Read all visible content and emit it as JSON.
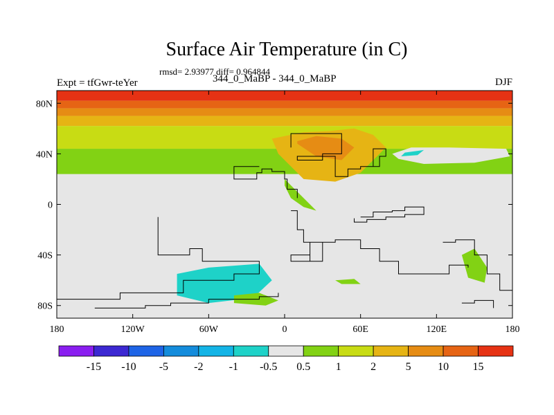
{
  "chart_data": {
    "type": "contour-map",
    "title": "Surface Air Temperature (in C)",
    "stats_text": "rmsd= 2.93977 diff= 0.964844",
    "subtitle": "344_0_MaBP - 344_0_MaBP",
    "left_label": "Expt = tfGwr-teYer",
    "right_label": "DJF",
    "x_axis": {
      "range": [
        -180,
        180
      ],
      "ticks": [
        -180,
        -120,
        -60,
        0,
        60,
        120,
        180
      ],
      "tick_labels": [
        "180",
        "120W",
        "60W",
        "0",
        "60E",
        "120E",
        "180"
      ]
    },
    "y_axis": {
      "range": [
        -90,
        90
      ],
      "ticks": [
        80,
        40,
        0,
        -40,
        -80
      ],
      "tick_labels": [
        "80N",
        "40N",
        "0",
        "40S",
        "80S"
      ]
    },
    "colorbar": {
      "levels": [
        "-15",
        "-10",
        "-5",
        "-2",
        "-1",
        "-0.5",
        "0.5",
        "1",
        "2",
        "5",
        "10",
        "15"
      ],
      "colors": [
        "#8a1ef0",
        "#3c28d2",
        "#1e64e6",
        "#148cdc",
        "#14b4e6",
        "#1ed2c8",
        "#e6e6e6",
        "#82d214",
        "#c8dc14",
        "#e6b414",
        "#e68c14",
        "#e66414",
        "#e63214"
      ]
    },
    "zonal_bands": [
      {
        "lat_min": 82,
        "lat_max": 90,
        "value": 17,
        "color": "#e63214"
      },
      {
        "lat_min": 76,
        "lat_max": 82,
        "value": 12,
        "color": "#e66414"
      },
      {
        "lat_min": 70,
        "lat_max": 76,
        "value": 7,
        "color": "#e68c14"
      },
      {
        "lat_min": 62,
        "lat_max": 70,
        "value": 3,
        "color": "#e6b414"
      },
      {
        "lat_min": 44,
        "lat_max": 62,
        "value": 1.5,
        "color": "#c8dc14"
      },
      {
        "lat_min": 24,
        "lat_max": 44,
        "value": 0.8,
        "color": "#82d214"
      }
    ],
    "regions": [
      {
        "name": "asia-warm",
        "color": "#e6b414",
        "lon": [
          -10,
          -5,
          15,
          40,
          60,
          70,
          80,
          70,
          55,
          35,
          15,
          0
        ],
        "lat": [
          52,
          40,
          20,
          18,
          25,
          35,
          45,
          55,
          60,
          58,
          57,
          54
        ]
      },
      {
        "name": "asia-core",
        "color": "#e68c14",
        "lon": [
          10,
          25,
          45,
          55,
          45,
          25,
          10
        ],
        "lat": [
          48,
          38,
          35,
          45,
          52,
          54,
          50
        ]
      },
      {
        "name": "arctic-cold-pool",
        "color": "#e6e6e6",
        "lon": [
          85,
          100,
          130,
          175,
          178,
          150,
          110,
          90
        ],
        "lat": [
          40,
          45,
          45,
          44,
          38,
          33,
          32,
          36
        ]
      },
      {
        "name": "siberia-teal",
        "color": "#1ed2c8",
        "lon": [
          95,
          110,
          105,
          92
        ],
        "lat": [
          41,
          43,
          39,
          38
        ]
      },
      {
        "name": "africa-green",
        "color": "#82d214",
        "lon": [
          0,
          10,
          20,
          25,
          15,
          5,
          0
        ],
        "lat": [
          20,
          10,
          0,
          -5,
          -2,
          5,
          15
        ]
      },
      {
        "name": "southern-blue",
        "color": "#148cdc",
        "lon": [
          -75,
          -58,
          -40,
          -36,
          -50,
          -70,
          -78
        ],
        "lat": [
          -62,
          -57,
          -58,
          -66,
          -70,
          -70,
          -66
        ]
      },
      {
        "name": "southern-cyan",
        "color": "#1ed2c8",
        "lon": [
          -85,
          -60,
          -20,
          -10,
          -25,
          -60,
          -85
        ],
        "lat": [
          -55,
          -50,
          -47,
          -60,
          -74,
          -78,
          -72
        ]
      },
      {
        "name": "southern-green-1",
        "color": "#82d214",
        "lon": [
          -40,
          -20,
          -5,
          -15,
          -40
        ],
        "lat": [
          -72,
          -70,
          -76,
          -80,
          -78
        ]
      },
      {
        "name": "pacific-green",
        "color": "#82d214",
        "lon": [
          140,
          150,
          160,
          158,
          145
        ],
        "lat": [
          -40,
          -35,
          -50,
          -62,
          -58
        ]
      },
      {
        "name": "indian-green",
        "color": "#82d214",
        "lon": [
          40,
          55,
          60,
          45
        ],
        "lat": [
          -60,
          -59,
          -63,
          -63
        ]
      }
    ],
    "coastlines": [
      {
        "name": "north-america",
        "lon": [
          -20,
          -35,
          -40,
          -30,
          -22,
          -18,
          -10,
          0,
          2,
          10
        ],
        "lat": [
          30,
          30,
          20,
          20,
          25,
          28,
          26,
          20,
          12,
          5
        ]
      },
      {
        "name": "eurasia",
        "lon": [
          5,
          5,
          30,
          45,
          45,
          30,
          10,
          40,
          50,
          60,
          75,
          80,
          70
        ],
        "lat": [
          45,
          56,
          56,
          50,
          40,
          35,
          38,
          22,
          28,
          30,
          38,
          44,
          30
        ]
      },
      {
        "name": "equatorial-island",
        "lon": [
          60,
          70,
          85,
          95,
          110,
          110,
          95,
          80,
          65,
          55
        ],
        "lat": [
          -10,
          -6,
          -5,
          -2,
          -2,
          -8,
          -10,
          -12,
          -14,
          -11
        ]
      },
      {
        "name": "africa-south",
        "lon": [
          5,
          10,
          15,
          28,
          30,
          20,
          5,
          20,
          40,
          60,
          75,
          90,
          110,
          130,
          145
        ],
        "lat": [
          -5,
          -20,
          -30,
          -30,
          -45,
          -40,
          -45,
          -30,
          -28,
          -35,
          -45,
          -55,
          -55,
          -48,
          -50
        ]
      },
      {
        "name": "south-america",
        "lon": [
          -100,
          -100,
          -75,
          -65,
          -30,
          -20,
          -40,
          -80,
          -130,
          -180
        ],
        "lat": [
          -10,
          -40,
          -35,
          -45,
          -45,
          -55,
          -60,
          -70,
          -75,
          -72
        ]
      },
      {
        "name": "antarctica-shelf",
        "lon": [
          -150,
          -110,
          -90,
          -60,
          -20,
          -5
        ],
        "lat": [
          -82,
          -80,
          -78,
          -75,
          -73,
          -70
        ]
      },
      {
        "name": "pacific-ridge",
        "lon": [
          125,
          135,
          150,
          160,
          170,
          180
        ],
        "lat": [
          -30,
          -28,
          -40,
          -55,
          -68,
          -72
        ]
      },
      {
        "name": "antarctic-peninsula",
        "lon": [
          140,
          150,
          165
        ],
        "lat": [
          -78,
          -76,
          -82
        ]
      }
    ]
  }
}
